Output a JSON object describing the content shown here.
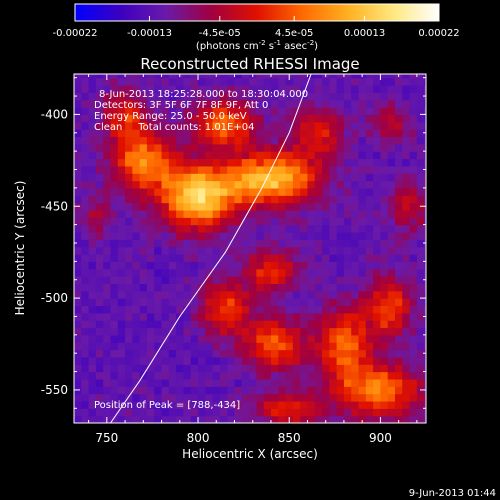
{
  "chart_data": {
    "type": "heatmap",
    "title": "Reconstructed RHESSI Image",
    "xlabel": "Heliocentric X (arcsec)",
    "ylabel": "Heliocentric Y (arcsec)",
    "xlim": [
      732,
      925
    ],
    "ylim": [
      -568,
      -378
    ],
    "xticks": [
      750,
      800,
      850,
      900
    ],
    "yticks": [
      -550,
      -500,
      -450,
      -400
    ],
    "colorbar": {
      "min": -0.00022,
      "max": 0.00022,
      "tick_labels": [
        "-0.00022",
        "-0.00013",
        "-4.5e-05",
        "4.5e-05",
        "0.00013",
        "0.00022"
      ],
      "tick_values": [
        -0.00022,
        -0.00013,
        -4.5e-05,
        4.5e-05,
        0.00013,
        0.00022
      ],
      "unit_label": {
        "prefix": "(photons cm",
        "exp1": "-2",
        "mid1": " s",
        "exp2": "-1",
        "mid2": " asec",
        "exp3": "-2",
        "suffix": ")"
      },
      "colors": [
        "#0000ff",
        "#3c00c0",
        "#6a1aa8",
        "#a00040",
        "#e01000",
        "#ff6a00",
        "#ffb020",
        "#ffe880",
        "#ffffff"
      ]
    },
    "annotations": [
      "8-Jun-2013 18:25:28.000 to 18:30:04.000",
      "Detectors: 3F 5F 6F 7F 8F 9F, Att 0",
      "Energy Range: 25.0 - 50.0 keV",
      "Clean     Total counts: 1.01E+04"
    ],
    "peak_label": "Position of Peak = [788,-434]",
    "peak": [
      788,
      -434
    ],
    "limb_curve": [
      [
        752,
        -568
      ],
      [
        768,
        -545
      ],
      [
        790,
        -510
      ],
      [
        815,
        -475
      ],
      [
        835,
        -440
      ],
      [
        850,
        -410
      ],
      [
        862,
        -378
      ]
    ],
    "features": [
      {
        "x": 800,
        "y": -445,
        "sx": 14,
        "sy": 12,
        "a": 1.0
      },
      {
        "x": 840,
        "y": -435,
        "sx": 18,
        "sy": 10,
        "a": 0.9
      },
      {
        "x": 770,
        "y": -425,
        "sx": 12,
        "sy": 12,
        "a": 0.7
      },
      {
        "x": 760,
        "y": -400,
        "sx": 8,
        "sy": 10,
        "a": 0.45
      },
      {
        "x": 815,
        "y": -405,
        "sx": 12,
        "sy": 9,
        "a": 0.65
      },
      {
        "x": 865,
        "y": -410,
        "sx": 10,
        "sy": 10,
        "a": 0.45
      },
      {
        "x": 840,
        "y": -485,
        "sx": 10,
        "sy": 8,
        "a": 0.5
      },
      {
        "x": 815,
        "y": -505,
        "sx": 10,
        "sy": 10,
        "a": 0.55
      },
      {
        "x": 842,
        "y": -525,
        "sx": 12,
        "sy": 10,
        "a": 0.6
      },
      {
        "x": 880,
        "y": -525,
        "sx": 10,
        "sy": 14,
        "a": 0.65
      },
      {
        "x": 905,
        "y": -505,
        "sx": 9,
        "sy": 12,
        "a": 0.55
      },
      {
        "x": 900,
        "y": -550,
        "sx": 16,
        "sy": 10,
        "a": 0.7
      },
      {
        "x": 850,
        "y": -560,
        "sx": 14,
        "sy": 7,
        "a": 0.45
      },
      {
        "x": 915,
        "y": -450,
        "sx": 8,
        "sy": 10,
        "a": 0.35
      },
      {
        "x": 905,
        "y": -405,
        "sx": 8,
        "sy": 8,
        "a": 0.3
      },
      {
        "x": 745,
        "y": -455,
        "sx": 6,
        "sy": 8,
        "a": 0.25
      }
    ]
  },
  "footer": {
    "timestamp": "9-Jun-2013 01:44"
  }
}
